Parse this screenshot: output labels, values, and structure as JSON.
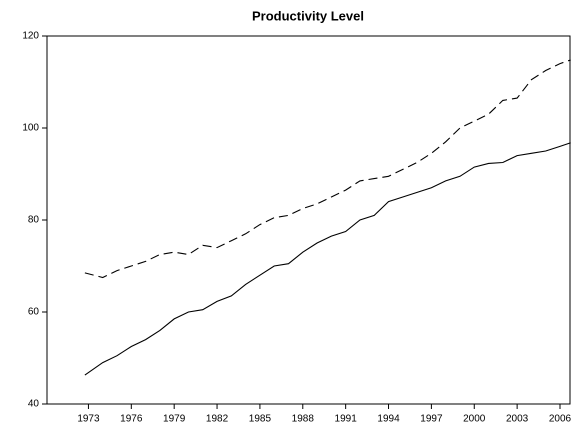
{
  "chart_data": {
    "type": "line",
    "title": "Productivity Level",
    "x": [
      1972.75,
      1974,
      1975,
      1976,
      1977,
      1978,
      1979,
      1980,
      1981,
      1982,
      1983,
      1984,
      1985,
      1986,
      1987,
      1988,
      1989,
      1990,
      1991,
      1992,
      1993,
      1994,
      1995,
      1996,
      1997,
      1998,
      1999,
      2000,
      2001,
      2002,
      2003,
      2004,
      2005,
      2006,
      2006.75
    ],
    "series": [
      {
        "color": "#000000",
        "dash": "solid",
        "values": [
          46.3,
          49,
          50.5,
          52.5,
          54,
          56,
          58.5,
          60,
          60.5,
          62.3,
          63.5,
          66,
          68,
          70,
          70.5,
          73,
          75,
          76.5,
          77.5,
          80,
          81,
          84,
          85,
          86,
          87,
          88.5,
          89.5,
          91.5,
          92.3,
          92.5,
          94,
          94.5,
          95,
          96,
          96.8
        ]
      },
      {
        "color": "#000000",
        "dash": "dashed",
        "values": [
          68.5,
          67.5,
          69,
          70,
          71,
          72.5,
          73,
          72.5,
          74.5,
          74,
          75.5,
          77,
          79,
          80.5,
          81,
          82.5,
          83.5,
          85,
          86.5,
          88.5,
          89,
          89.5,
          91,
          92.5,
          94.5,
          97,
          100,
          101.5,
          103,
          106,
          106.5,
          110.5,
          112.5,
          114,
          114.8
        ]
      }
    ],
    "xlim": [
      1970.1,
      2006.7
    ],
    "xticks": [
      1973,
      1976,
      1979,
      1982,
      1985,
      1988,
      1991,
      1994,
      1997,
      2000,
      2003,
      2006
    ],
    "ylim": [
      40,
      120
    ],
    "yticks": [
      40,
      60,
      80,
      100,
      120
    ],
    "grid": false
  }
}
